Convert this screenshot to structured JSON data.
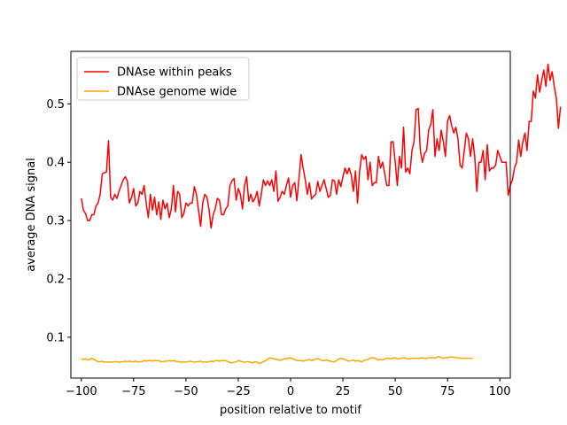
{
  "chart_data": {
    "type": "line",
    "xlabel": "position relative to motif",
    "ylabel": "average DNA signal",
    "xlim": [
      -105,
      105
    ],
    "ylim": [
      0.03,
      0.59
    ],
    "xticks": [
      -100,
      -75,
      -50,
      -25,
      0,
      25,
      50,
      75,
      100
    ],
    "yticks": [
      0.1,
      0.2,
      0.3,
      0.4,
      0.5
    ],
    "xtick_labels": [
      "−100",
      "−75",
      "−50",
      "−25",
      "0",
      "25",
      "50",
      "75",
      "100"
    ],
    "ytick_labels": [
      "0.1",
      "0.2",
      "0.3",
      "0.4",
      "0.5"
    ],
    "grid": false,
    "legend_position": "upper-left",
    "x_start": -100,
    "x_step": 1,
    "series": [
      {
        "name": "DNAse within peaks",
        "color": "#ff0000",
        "values": [
          0.338,
          0.318,
          0.312,
          0.3,
          0.3,
          0.31,
          0.31,
          0.325,
          0.33,
          0.345,
          0.38,
          0.382,
          0.383,
          0.437,
          0.34,
          0.335,
          0.345,
          0.338,
          0.35,
          0.36,
          0.37,
          0.375,
          0.368,
          0.33,
          0.34,
          0.355,
          0.325,
          0.33,
          0.35,
          0.345,
          0.36,
          0.33,
          0.305,
          0.345,
          0.318,
          0.34,
          0.31,
          0.332,
          0.302,
          0.335,
          0.32,
          0.33,
          0.305,
          0.32,
          0.36,
          0.315,
          0.35,
          0.345,
          0.305,
          0.312,
          0.33,
          0.325,
          0.33,
          0.33,
          0.358,
          0.345,
          0.318,
          0.29,
          0.33,
          0.345,
          0.34,
          0.32,
          0.287,
          0.31,
          0.32,
          0.338,
          0.335,
          0.31,
          0.31,
          0.32,
          0.325,
          0.36,
          0.368,
          0.372,
          0.335,
          0.355,
          0.345,
          0.32,
          0.36,
          0.375,
          0.333,
          0.345,
          0.332,
          0.338,
          0.35,
          0.325,
          0.345,
          0.37,
          0.36,
          0.368,
          0.36,
          0.37,
          0.35,
          0.385,
          0.333,
          0.34,
          0.35,
          0.345,
          0.36,
          0.373,
          0.34,
          0.36,
          0.365,
          0.334,
          0.372,
          0.413,
          0.39,
          0.37,
          0.345,
          0.365,
          0.337,
          0.342,
          0.345,
          0.367,
          0.35,
          0.36,
          0.37,
          0.355,
          0.34,
          0.343,
          0.37,
          0.368,
          0.345,
          0.37,
          0.358,
          0.375,
          0.39,
          0.38,
          0.39,
          0.378,
          0.35,
          0.385,
          0.33,
          0.385,
          0.413,
          0.405,
          0.41,
          0.37,
          0.4,
          0.36,
          0.365,
          0.365,
          0.41,
          0.39,
          0.4,
          0.38,
          0.36,
          0.36,
          0.435,
          0.435,
          0.4,
          0.36,
          0.41,
          0.39,
          0.46,
          0.383,
          0.39,
          0.38,
          0.42,
          0.435,
          0.49,
          0.492,
          0.42,
          0.4,
          0.415,
          0.42,
          0.455,
          0.465,
          0.49,
          0.41,
          0.44,
          0.42,
          0.455,
          0.435,
          0.41,
          0.47,
          0.48,
          0.462,
          0.45,
          0.46,
          0.44,
          0.395,
          0.39,
          0.42,
          0.45,
          0.44,
          0.41,
          0.44,
          0.41,
          0.35,
          0.4,
          0.4,
          0.42,
          0.37,
          0.43,
          0.385,
          0.39,
          0.39,
          0.395,
          0.42,
          0.41,
          0.4,
          0.4,
          0.4,
          0.343,
          0.36,
          0.37,
          0.39,
          0.4,
          0.438,
          0.41,
          0.435,
          0.45,
          0.42,
          0.47,
          0.47,
          0.522,
          0.51,
          0.55,
          0.52,
          0.54,
          0.558,
          0.53,
          0.568,
          0.54,
          0.555,
          0.53,
          0.51,
          0.458,
          0.495
        ]
      },
      {
        "name": "DNAse genome wide",
        "color": "#ffa500",
        "values": [
          0.063,
          0.062,
          0.063,
          0.061,
          0.062,
          0.064,
          0.062,
          0.06,
          0.058,
          0.058,
          0.059,
          0.057,
          0.058,
          0.057,
          0.058,
          0.057,
          0.058,
          0.058,
          0.057,
          0.058,
          0.058,
          0.059,
          0.058,
          0.059,
          0.058,
          0.058,
          0.059,
          0.057,
          0.058,
          0.058,
          0.06,
          0.059,
          0.06,
          0.06,
          0.059,
          0.06,
          0.06,
          0.06,
          0.058,
          0.058,
          0.059,
          0.059,
          0.06,
          0.059,
          0.06,
          0.059,
          0.058,
          0.058,
          0.057,
          0.058,
          0.057,
          0.058,
          0.059,
          0.058,
          0.057,
          0.058,
          0.058,
          0.059,
          0.057,
          0.058,
          0.057,
          0.058,
          0.059,
          0.058,
          0.06,
          0.06,
          0.059,
          0.06,
          0.06,
          0.06,
          0.058,
          0.057,
          0.056,
          0.057,
          0.058,
          0.06,
          0.059,
          0.058,
          0.057,
          0.058,
          0.058,
          0.057,
          0.056,
          0.058,
          0.057,
          0.055,
          0.056,
          0.058,
          0.06,
          0.062,
          0.065,
          0.064,
          0.063,
          0.062,
          0.062,
          0.06,
          0.062,
          0.063,
          0.063,
          0.064,
          0.065,
          0.063,
          0.062,
          0.06,
          0.06,
          0.06,
          0.059,
          0.06,
          0.061,
          0.062,
          0.06,
          0.061,
          0.063,
          0.063,
          0.062,
          0.06,
          0.06,
          0.061,
          0.06,
          0.059,
          0.058,
          0.058,
          0.06,
          0.063,
          0.064,
          0.063,
          0.062,
          0.06,
          0.059,
          0.06,
          0.061,
          0.059,
          0.06,
          0.059,
          0.058,
          0.06,
          0.061,
          0.062,
          0.064,
          0.065,
          0.064,
          0.063,
          0.061,
          0.062,
          0.061,
          0.063,
          0.064,
          0.064,
          0.063,
          0.064,
          0.065,
          0.063,
          0.063,
          0.064,
          0.065,
          0.064,
          0.063,
          0.063,
          0.064,
          0.064,
          0.064,
          0.064,
          0.064,
          0.065,
          0.064,
          0.064,
          0.065,
          0.065,
          0.065,
          0.064,
          0.066,
          0.067,
          0.065,
          0.064,
          0.065,
          0.065,
          0.066,
          0.066,
          0.066,
          0.065,
          0.065,
          0.064,
          0.064,
          0.064,
          0.064,
          0.064,
          0.064,
          0.064
        ]
      }
    ]
  }
}
